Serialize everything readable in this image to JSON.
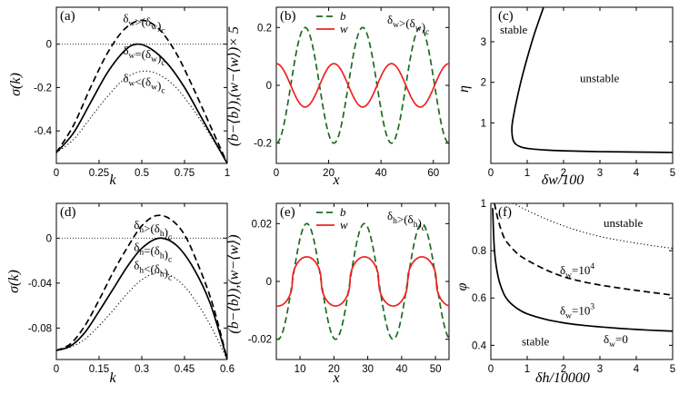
{
  "figure": {
    "ticks_inward": true
  },
  "chart_data": [
    {
      "id": "a",
      "type": "line",
      "panel_label": "(a)",
      "xlabel": "k",
      "ylabel": "σ(k)",
      "xlim": [
        0,
        1
      ],
      "ylim": [
        -0.55,
        0.17
      ],
      "xticks": [
        0,
        0.25,
        0.5,
        0.75,
        1
      ],
      "xticklabels": [
        "0",
        "0.25",
        "0.5",
        "0.75",
        "1"
      ],
      "yticks": [
        -0.4,
        -0.2,
        0
      ],
      "yticklabels": [
        "-0.4",
        "-0.2",
        "0"
      ],
      "hline": 0,
      "series": [
        {
          "name": "δw>(δw)c",
          "style": "dashed",
          "x": [
            0,
            0.1,
            0.2,
            0.3,
            0.4,
            0.5,
            0.6,
            0.7,
            0.8,
            0.9,
            1.0
          ],
          "y": [
            -0.5,
            -0.375,
            -0.2,
            -0.04,
            0.07,
            0.11,
            0.07,
            -0.04,
            -0.2,
            -0.375,
            -0.55
          ]
        },
        {
          "name": "δw=(δw)c",
          "style": "solid",
          "x": [
            0,
            0.1,
            0.2,
            0.3,
            0.4,
            0.47,
            0.55,
            0.65,
            0.75,
            0.85,
            0.95,
            1.0
          ],
          "y": [
            -0.5,
            -0.41,
            -0.27,
            -0.13,
            -0.03,
            0.0,
            -0.02,
            -0.09,
            -0.2,
            -0.34,
            -0.48,
            -0.55
          ]
        },
        {
          "name": "δw<(δw)c",
          "style": "dotted",
          "x": [
            0,
            0.1,
            0.2,
            0.3,
            0.4,
            0.5,
            0.6,
            0.7,
            0.8,
            0.9,
            1.0
          ],
          "y": [
            -0.5,
            -0.44,
            -0.34,
            -0.24,
            -0.16,
            -0.125,
            -0.14,
            -0.2,
            -0.3,
            -0.42,
            -0.55
          ]
        }
      ],
      "annotations": [
        {
          "main": "δ",
          "sub": "w",
          "rest": ">(δ",
          "sub2": "w",
          "tail": ")",
          "sub3": "c",
          "x": 0.39,
          "y": 0.1
        },
        {
          "main": "δ",
          "sub": "w",
          "rest": "=(δ",
          "sub2": "w",
          "tail": ")",
          "sub3": "c",
          "x": 0.39,
          "y": -0.048
        },
        {
          "main": "δ",
          "sub": "w",
          "rest": "<(δ",
          "sub2": "w",
          "tail": ")",
          "sub3": "c",
          "x": 0.39,
          "y": -0.175
        }
      ]
    },
    {
      "id": "b",
      "type": "line",
      "panel_label": "(b)",
      "xlabel": "x",
      "ylabel": "(b−⟨b⟩),(w−⟨w⟩)× 5",
      "xlim": [
        0,
        66
      ],
      "ylim": [
        -0.27,
        0.27
      ],
      "xticks": [
        0,
        20,
        40,
        60
      ],
      "xticklabels": [
        "0",
        "20",
        "40",
        "60"
      ],
      "yticks": [
        -0.2,
        0,
        0.2
      ],
      "yticklabels": [
        "-0.2",
        "0",
        "0.2"
      ],
      "legend": [
        "b",
        "w"
      ],
      "legend_position": "top-left",
      "title_annotation": {
        "main": "δ",
        "sub": "w",
        "rest": ">(δ",
        "sub2": "w",
        "tail": ")",
        "sub3": "c"
      },
      "series": [
        {
          "name": "b",
          "style": "dashed",
          "color": "#1e6b1e",
          "form": "cosine",
          "amplitude": 0.2,
          "period": 22,
          "phase_peak_x": 11
        },
        {
          "name": "w",
          "style": "solid",
          "color": "#ee2222",
          "form": "cosine",
          "amplitude": 0.075,
          "period": 22,
          "phase_peak_x": 0
        }
      ]
    },
    {
      "id": "c",
      "type": "line",
      "panel_label": "(c)",
      "xlabel": "δw/100",
      "ylabel": "η",
      "xlim": [
        0,
        5
      ],
      "ylim": [
        0,
        3.85
      ],
      "xticks": [
        0,
        1,
        2,
        3,
        4,
        5
      ],
      "xticklabels": [
        "0",
        "1",
        "2",
        "3",
        "4",
        "5"
      ],
      "yticks": [
        1,
        2,
        3
      ],
      "yticklabels": [
        "1",
        "2",
        "3"
      ],
      "region_labels": [
        "stable",
        "unstable"
      ],
      "series": [
        {
          "name": "boundary",
          "style": "solid",
          "x": [
            1.45,
            1.2,
            1.0,
            0.85,
            0.72,
            0.63,
            0.58,
            0.6,
            0.68,
            0.85,
            1.1,
            1.5,
            2.0,
            3.0,
            4.0,
            5.0
          ],
          "y": [
            3.85,
            3.2,
            2.6,
            2.1,
            1.6,
            1.2,
            0.9,
            0.62,
            0.48,
            0.4,
            0.36,
            0.33,
            0.31,
            0.29,
            0.28,
            0.27
          ]
        }
      ]
    },
    {
      "id": "d",
      "type": "line",
      "panel_label": "(d)",
      "xlabel": "k",
      "ylabel": "σ(k)",
      "xlim": [
        0,
        0.6
      ],
      "ylim": [
        -0.108,
        0.031
      ],
      "xticks": [
        0,
        0.15,
        0.3,
        0.45,
        0.6
      ],
      "xticklabels": [
        "0",
        "0.15",
        "0.3",
        "0.45",
        "0.6"
      ],
      "yticks": [
        -0.08,
        -0.04,
        0
      ],
      "yticklabels": [
        "-0.08",
        "-0.04",
        "0"
      ],
      "hline": 0,
      "series": [
        {
          "name": "δh>(δh)c",
          "style": "dashed",
          "x": [
            0,
            0.05,
            0.1,
            0.15,
            0.2,
            0.25,
            0.3,
            0.35,
            0.4,
            0.45,
            0.5,
            0.55,
            0.6
          ],
          "y": [
            -0.1,
            -0.094,
            -0.078,
            -0.055,
            -0.03,
            -0.008,
            0.011,
            0.02,
            0.017,
            0.003,
            -0.025,
            -0.06,
            -0.108
          ]
        },
        {
          "name": "δh=(δh)c",
          "style": "solid",
          "x": [
            0,
            0.05,
            0.1,
            0.15,
            0.2,
            0.25,
            0.3,
            0.36,
            0.42,
            0.48,
            0.54,
            0.6
          ],
          "y": [
            -0.1,
            -0.096,
            -0.084,
            -0.065,
            -0.045,
            -0.025,
            -0.009,
            0.0,
            -0.006,
            -0.026,
            -0.058,
            -0.108
          ]
        },
        {
          "name": "δh<(δh)c",
          "style": "dotted",
          "x": [
            0,
            0.05,
            0.1,
            0.15,
            0.2,
            0.25,
            0.3,
            0.35,
            0.4,
            0.45,
            0.5,
            0.55,
            0.6
          ],
          "y": [
            -0.1,
            -0.097,
            -0.09,
            -0.078,
            -0.064,
            -0.049,
            -0.037,
            -0.031,
            -0.033,
            -0.043,
            -0.06,
            -0.082,
            -0.108
          ]
        }
      ],
      "annotations": [
        {
          "main": "δ",
          "sub": "h",
          "rest": ">(δ",
          "sub2": "h",
          "tail": ")",
          "sub3": "c",
          "x": 0.272,
          "y": 0.0085
        },
        {
          "main": "δ",
          "sub": "h",
          "rest": "=(δ",
          "sub2": "h",
          "tail": ")",
          "sub3": "c",
          "x": 0.272,
          "y": -0.0115
        },
        {
          "main": "δ",
          "sub": "h",
          "rest": "<(δ",
          "sub2": "h",
          "tail": ")",
          "sub3": "c",
          "x": 0.272,
          "y": -0.0275
        }
      ]
    },
    {
      "id": "e",
      "type": "line",
      "panel_label": "(e)",
      "xlabel": "x",
      "ylabel": "(b−⟨b⟩),(w−⟨w⟩)",
      "xlim": [
        3,
        54
      ],
      "ylim": [
        -0.027,
        0.027
      ],
      "xticks": [
        10,
        20,
        30,
        40,
        50
      ],
      "xticklabels": [
        "10",
        "20",
        "30",
        "40",
        "50"
      ],
      "yticks": [
        -0.02,
        0,
        0.02
      ],
      "yticklabels": [
        "-0.02",
        "0",
        "0.02"
      ],
      "legend": [
        "b",
        "w"
      ],
      "legend_position": "top-left",
      "title_annotation": {
        "main": "δ",
        "sub": "h",
        "rest": ">(δ",
        "sub2": "h",
        "tail": ")",
        "sub3": "c"
      },
      "series": [
        {
          "name": "b",
          "style": "dashed",
          "color": "#1e6b1e",
          "form": "cosine",
          "amplitude": 0.02,
          "period": 17,
          "phase_peak_x": 12
        },
        {
          "name": "w",
          "style": "solid",
          "color": "#ee2222",
          "form": "flattened-cosine",
          "amplitude": 0.0085,
          "period": 17,
          "phase_peak_x": 12
        }
      ]
    },
    {
      "id": "f",
      "type": "line",
      "panel_label": "(f)",
      "xlabel": "δh/10000",
      "ylabel": "φ",
      "xlim": [
        0,
        5
      ],
      "ylim": [
        0.34,
        1.0
      ],
      "xticks": [
        0,
        1,
        2,
        3,
        4,
        5
      ],
      "xticklabels": [
        "0",
        "1",
        "2",
        "3",
        "4",
        "5"
      ],
      "yticks": [
        0.4,
        0.6,
        0.8,
        1
      ],
      "yticklabels": [
        "0.4",
        "0.6",
        "0.8",
        "1"
      ],
      "region_labels": [
        "unstable",
        "stable"
      ],
      "series": [
        {
          "name": "δw=0",
          "style": "solid",
          "x": [
            0.05,
            0.1,
            0.2,
            0.35,
            0.5,
            0.75,
            1.0,
            1.5,
            2.0,
            2.5,
            3.0,
            3.5,
            4.0,
            4.5,
            5.0
          ],
          "y": [
            0.98,
            0.8,
            0.69,
            0.62,
            0.585,
            0.553,
            0.533,
            0.51,
            0.495,
            0.485,
            0.478,
            0.472,
            0.467,
            0.463,
            0.46
          ]
        },
        {
          "name": "δw=10^3",
          "style": "dashed",
          "x": [
            0.1,
            0.2,
            0.35,
            0.5,
            0.75,
            1.0,
            1.5,
            2.0,
            2.5,
            3.0,
            3.5,
            4.0,
            4.5,
            5.0
          ],
          "y": [
            1.0,
            0.93,
            0.86,
            0.825,
            0.785,
            0.76,
            0.72,
            0.69,
            0.67,
            0.655,
            0.643,
            0.632,
            0.622,
            0.612
          ]
        },
        {
          "name": "δw=10^4",
          "style": "dotted",
          "x": [
            0.6,
            0.75,
            1.0,
            1.5,
            2.0,
            2.5,
            3.0,
            3.5,
            4.0,
            4.5,
            5.0
          ],
          "y": [
            1.0,
            0.99,
            0.97,
            0.935,
            0.905,
            0.88,
            0.86,
            0.845,
            0.832,
            0.82,
            0.81
          ]
        }
      ],
      "annotations": [
        {
          "text": "δ",
          "sub": "w",
          "tail": "=10",
          "sup": "4"
        },
        {
          "text": "δ",
          "sub": "w",
          "tail": "=10",
          "sup": "3"
        },
        {
          "text": "δ",
          "sub": "w",
          "tail": "=0",
          "sup": ""
        }
      ]
    }
  ]
}
